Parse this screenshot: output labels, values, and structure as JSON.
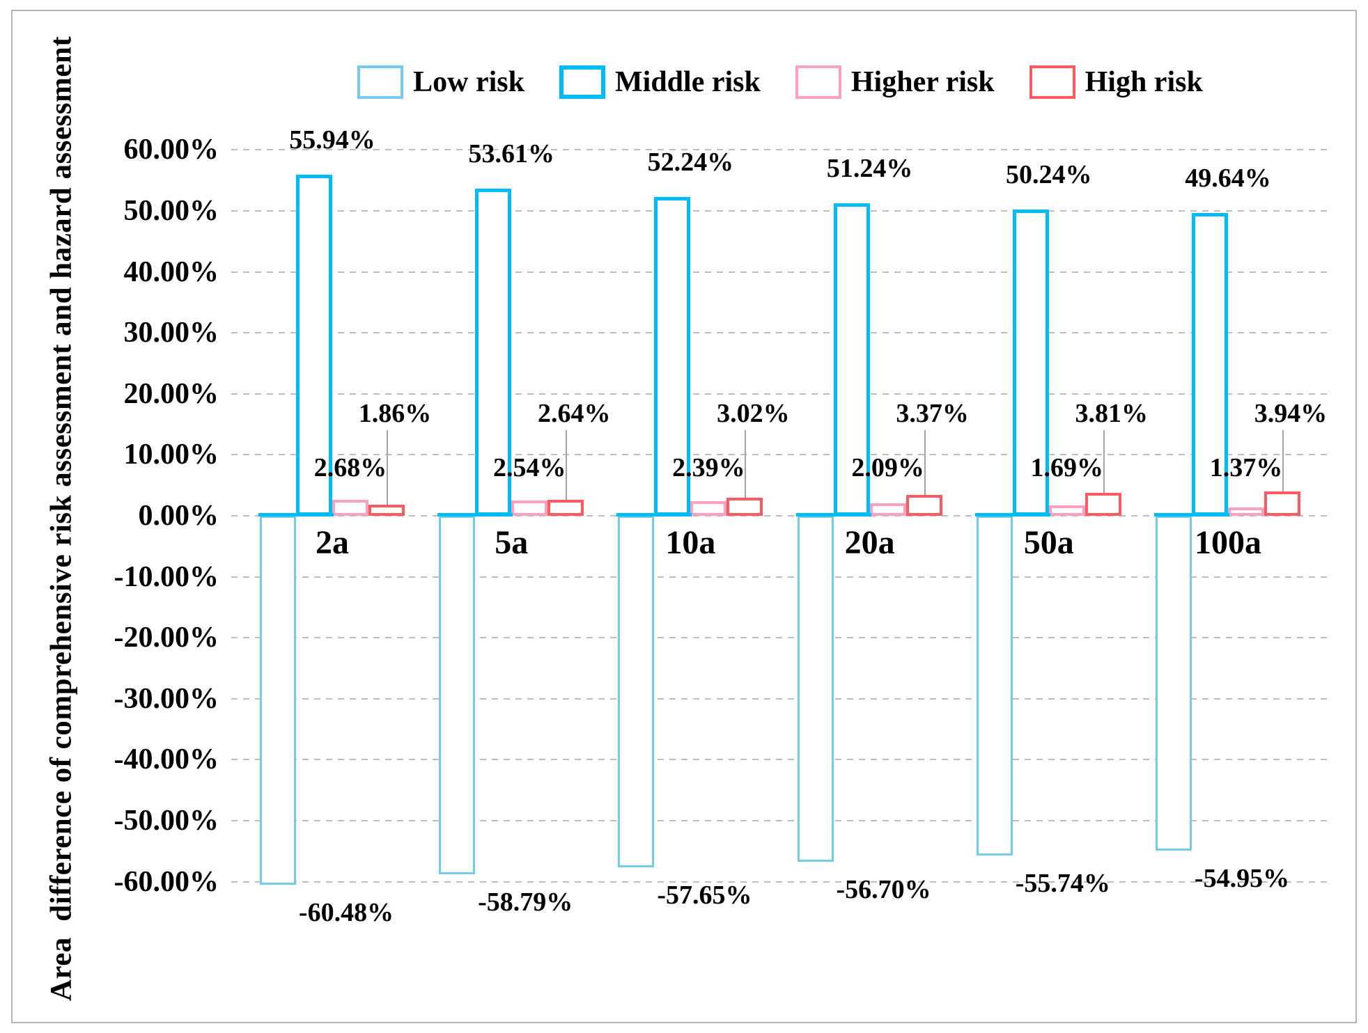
{
  "y_axis": {
    "title": "Area  difference of comprehensive risk assessment and hazard assessment",
    "ticks": [
      "60.00%",
      "50.00%",
      "40.00%",
      "30.00%",
      "20.00%",
      "10.00%",
      "0.00%",
      "-10.00%",
      "-20.00%",
      "-30.00%",
      "-40.00%",
      "-50.00%",
      "-60.00%"
    ]
  },
  "chart_data": {
    "type": "bar",
    "title": "",
    "xlabel": "",
    "ylabel": "Area  difference of comprehensive risk assessment and hazard assessment",
    "ylim": [
      -60,
      60
    ],
    "ytick_step": 10,
    "grid": "dashed-horizontal",
    "legend_position": "top",
    "bar_fill": "#ffffff",
    "categories": [
      "2a",
      "5a",
      "10a",
      "20a",
      "50a",
      "100a"
    ],
    "series": [
      {
        "name": "Low risk",
        "color": "#76CBEA",
        "values": [
          -60.48,
          -58.79,
          -57.65,
          -56.7,
          -55.74,
          -54.95
        ],
        "labels": [
          "-60.48%",
          "-58.79%",
          "-57.65%",
          "-56.70%",
          "-55.74%",
          "-54.95%"
        ]
      },
      {
        "name": "Middle risk",
        "color": "#00BCF2",
        "values": [
          55.94,
          53.61,
          52.24,
          51.24,
          50.24,
          49.64
        ],
        "labels": [
          "55.94%",
          "53.61%",
          "52.24%",
          "51.24%",
          "50.24%",
          "49.64%"
        ]
      },
      {
        "name": "Higher risk",
        "color": "#FFA0BE",
        "values": [
          2.68,
          2.54,
          2.39,
          2.09,
          1.69,
          1.37
        ],
        "labels": [
          "2.68%",
          "2.54%",
          "2.39%",
          "2.09%",
          "1.69%",
          "1.37%"
        ]
      },
      {
        "name": "High risk",
        "color": "#FA5A62",
        "values": [
          1.86,
          2.64,
          3.02,
          3.37,
          3.81,
          3.94
        ],
        "labels": [
          "1.86%",
          "2.64%",
          "3.02%",
          "3.37%",
          "3.81%",
          "3.94%"
        ]
      }
    ]
  }
}
